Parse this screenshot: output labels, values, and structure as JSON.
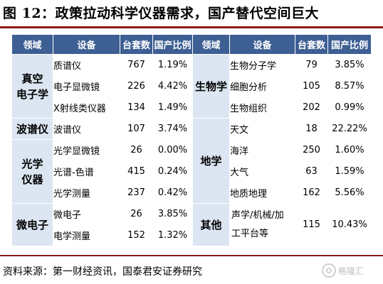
{
  "figure": {
    "title": "图 12：政策拉动科学仪器需求，国产替代空间巨大"
  },
  "table": {
    "headers": [
      "领域",
      "设备",
      "台套数",
      "国产比例",
      "领域",
      "设备",
      "台套数",
      "国产比例"
    ],
    "left": {
      "groups": [
        {
          "category": "真空\n电子学",
          "rows": [
            {
              "device": "质谱仪",
              "count": "767",
              "ratio": "1.19%"
            },
            {
              "device": "电子显微镜",
              "count": "226",
              "ratio": "4.42%"
            },
            {
              "device": "X射线类仪器",
              "count": "134",
              "ratio": "1.49%"
            }
          ]
        },
        {
          "category": "波谱仪",
          "rows": [
            {
              "device": "波谱仪",
              "count": "107",
              "ratio": "3.74%"
            }
          ]
        },
        {
          "category": "光学\n仪器",
          "rows": [
            {
              "device": "光学显微镜",
              "count": "26",
              "ratio": "0.00%"
            },
            {
              "device": "光谱-色谱",
              "count": "415",
              "ratio": "0.24%"
            },
            {
              "device": "光学测量",
              "count": "237",
              "ratio": "0.42%"
            }
          ]
        },
        {
          "category": "微电子",
          "rows": [
            {
              "device": "微电子",
              "count": "26",
              "ratio": "3.85%"
            },
            {
              "device": "电学测量",
              "count": "152",
              "ratio": "1.32%"
            }
          ]
        }
      ]
    },
    "right": {
      "groups": [
        {
          "category": "生物学",
          "rows": [
            {
              "device": "生物分子学",
              "count": "79",
              "ratio": "3.85%"
            },
            {
              "device": "细胞分析",
              "count": "105",
              "ratio": "8.57%"
            },
            {
              "device": "生物组织",
              "count": "202",
              "ratio": "0.99%"
            }
          ]
        },
        {
          "category": "地学",
          "rows": [
            {
              "device": "天文",
              "count": "18",
              "ratio": "22.22%"
            },
            {
              "device": "海洋",
              "count": "250",
              "ratio": "1.60%"
            },
            {
              "device": "大气",
              "count": "63",
              "ratio": "1.59%"
            },
            {
              "device": "地质地理",
              "count": "162",
              "ratio": "5.56%"
            }
          ]
        },
        {
          "category": "其他",
          "rows": [
            {
              "device": "声学/机械/加工平台等",
              "count": "115",
              "ratio": "10.43%"
            }
          ]
        }
      ]
    }
  },
  "source": "资料来源：第一财经资讯，国泰君安证券研究",
  "watermark": "格隆汇",
  "colors": {
    "header_bg": "#3d5f93",
    "category_bg": "#dce6f2",
    "rule": "#8b1a1a"
  }
}
